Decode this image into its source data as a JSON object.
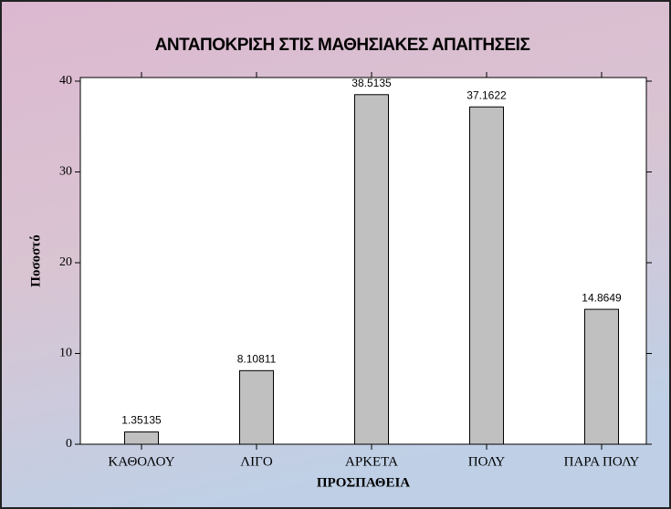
{
  "chart_data": {
    "type": "bar",
    "title": "ΑΝΤΑΠΟΚΡΙΣΗ ΣΤΙΣ ΜΑΘΗΣΙΑΚΕΣ ΑΠΑΙΤΗΣΕΙΣ",
    "x_label": "ΠΡΟΣΠΑΘΕΙΑ",
    "y_label": "Ποσοστό",
    "categories": [
      "ΚΑΘΟΛΟΥ",
      "ΛΙΓΟ",
      "ΑΡΚΕΤΑ",
      "ΠΟΛΥ",
      "ΠΑΡΑ ΠΟΛΥ"
    ],
    "values": [
      1.35135,
      8.10811,
      38.5135,
      37.1622,
      14.8649
    ],
    "color": "#c0c0c0",
    "ylim": [
      0,
      40.4
    ],
    "yticks": [
      0,
      10,
      20,
      30,
      40
    ]
  }
}
